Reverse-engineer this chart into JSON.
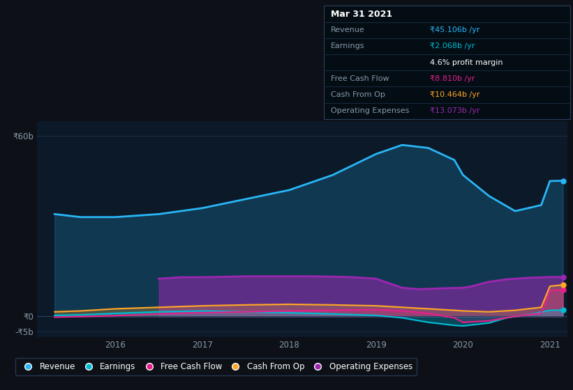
{
  "background_color": "#0d1117",
  "plot_bg_color": "#0c1929",
  "grid_color": "#1a2e45",
  "ylabel_60b": "₹60b",
  "ylabel_0": "₹0",
  "ylabel_neg5b": "-₹5b",
  "ylim": [
    -7000000000,
    65000000000
  ],
  "colors": {
    "revenue": "#29b6f6",
    "earnings": "#00bcd4",
    "free_cash_flow": "#e91e8c",
    "cash_from_op": "#ffa726",
    "operating_expenses": "#9c27b0"
  },
  "legend_labels": [
    "Revenue",
    "Earnings",
    "Free Cash Flow",
    "Cash From Op",
    "Operating Expenses"
  ],
  "tooltip": {
    "date": "Mar 31 2021",
    "revenue_label": "Revenue",
    "revenue_val": "₹45.106b /yr",
    "earnings_label": "Earnings",
    "earnings_val": "₹2.068b /yr",
    "profit_margin": "4.6% profit margin",
    "fcf_label": "Free Cash Flow",
    "fcf_val": "₹8.810b /yr",
    "cashop_label": "Cash From Op",
    "cashop_val": "₹10.464b /yr",
    "opex_label": "Operating Expenses",
    "opex_val": "₹13.073b /yr"
  },
  "revenue_x": [
    2015.3,
    2015.6,
    2016.0,
    2016.5,
    2017.0,
    2017.5,
    2018.0,
    2018.5,
    2019.0,
    2019.3,
    2019.6,
    2019.9,
    2020.0,
    2020.3,
    2020.6,
    2020.9,
    2021.0,
    2021.15
  ],
  "revenue_y": [
    34000000000.0,
    33000000000.0,
    33000000000.0,
    34000000000.0,
    36000000000.0,
    39000000000.0,
    42000000000.0,
    47000000000.0,
    54000000000.0,
    57000000000.0,
    56000000000.0,
    52000000000.0,
    47000000000.0,
    40000000000.0,
    35000000000.0,
    37000000000.0,
    45000000000.0,
    45100000000.0
  ],
  "earnings_x": [
    2015.3,
    2015.6,
    2016.0,
    2016.5,
    2017.0,
    2017.5,
    2018.0,
    2018.5,
    2019.0,
    2019.3,
    2019.6,
    2019.9,
    2020.0,
    2020.3,
    2020.5,
    2020.8,
    2021.0,
    2021.15
  ],
  "earnings_y": [
    300000000.0,
    500000000.0,
    1000000000.0,
    1500000000.0,
    1800000000.0,
    1500000000.0,
    1200000000.0,
    800000000.0,
    300000000.0,
    -500000000.0,
    -2000000000.0,
    -3000000000.0,
    -3200000000.0,
    -2200000000.0,
    -500000000.0,
    800000000.0,
    2000000000.0,
    2070000000.0
  ],
  "fcf_x": [
    2015.3,
    2015.6,
    2016.0,
    2016.5,
    2017.0,
    2017.5,
    2018.0,
    2018.5,
    2019.0,
    2019.3,
    2019.6,
    2019.9,
    2020.0,
    2020.3,
    2020.6,
    2020.9,
    2021.0,
    2021.15
  ],
  "fcf_y": [
    -300000000.0,
    -100000000.0,
    200000000.0,
    800000000.0,
    1200000000.0,
    1500000000.0,
    1800000000.0,
    2000000000.0,
    2200000000.0,
    1800000000.0,
    1000000000.0,
    -500000000.0,
    -2000000000.0,
    -1500000000.0,
    0.0,
    1000000000.0,
    8500000000.0,
    8810000000.0
  ],
  "cashop_x": [
    2015.3,
    2015.6,
    2016.0,
    2016.5,
    2017.0,
    2017.5,
    2018.0,
    2018.5,
    2019.0,
    2019.3,
    2019.6,
    2019.9,
    2020.0,
    2020.3,
    2020.6,
    2020.9,
    2021.0,
    2021.15
  ],
  "cashop_y": [
    1500000000.0,
    1800000000.0,
    2500000000.0,
    3000000000.0,
    3500000000.0,
    3800000000.0,
    4000000000.0,
    3800000000.0,
    3500000000.0,
    3000000000.0,
    2500000000.0,
    2000000000.0,
    1800000000.0,
    1500000000.0,
    2000000000.0,
    3000000000.0,
    10000000000.0,
    10460000000.0
  ],
  "opex_x": [
    2016.5,
    2016.75,
    2017.0,
    2017.5,
    2018.0,
    2018.25,
    2018.5,
    2018.75,
    2019.0,
    2019.15,
    2019.3,
    2019.5,
    2019.75,
    2020.0,
    2020.1,
    2020.3,
    2020.5,
    2020.75,
    2021.0,
    2021.15
  ],
  "opex_y": [
    12500000000.0,
    13000000000.0,
    13000000000.0,
    13300000000.0,
    13300000000.0,
    13300000000.0,
    13200000000.0,
    13000000000.0,
    12500000000.0,
    11000000000.0,
    9500000000.0,
    9000000000.0,
    9300000000.0,
    9500000000.0,
    10000000000.0,
    11500000000.0,
    12300000000.0,
    12800000000.0,
    13070000000.0,
    13070000000.0
  ]
}
